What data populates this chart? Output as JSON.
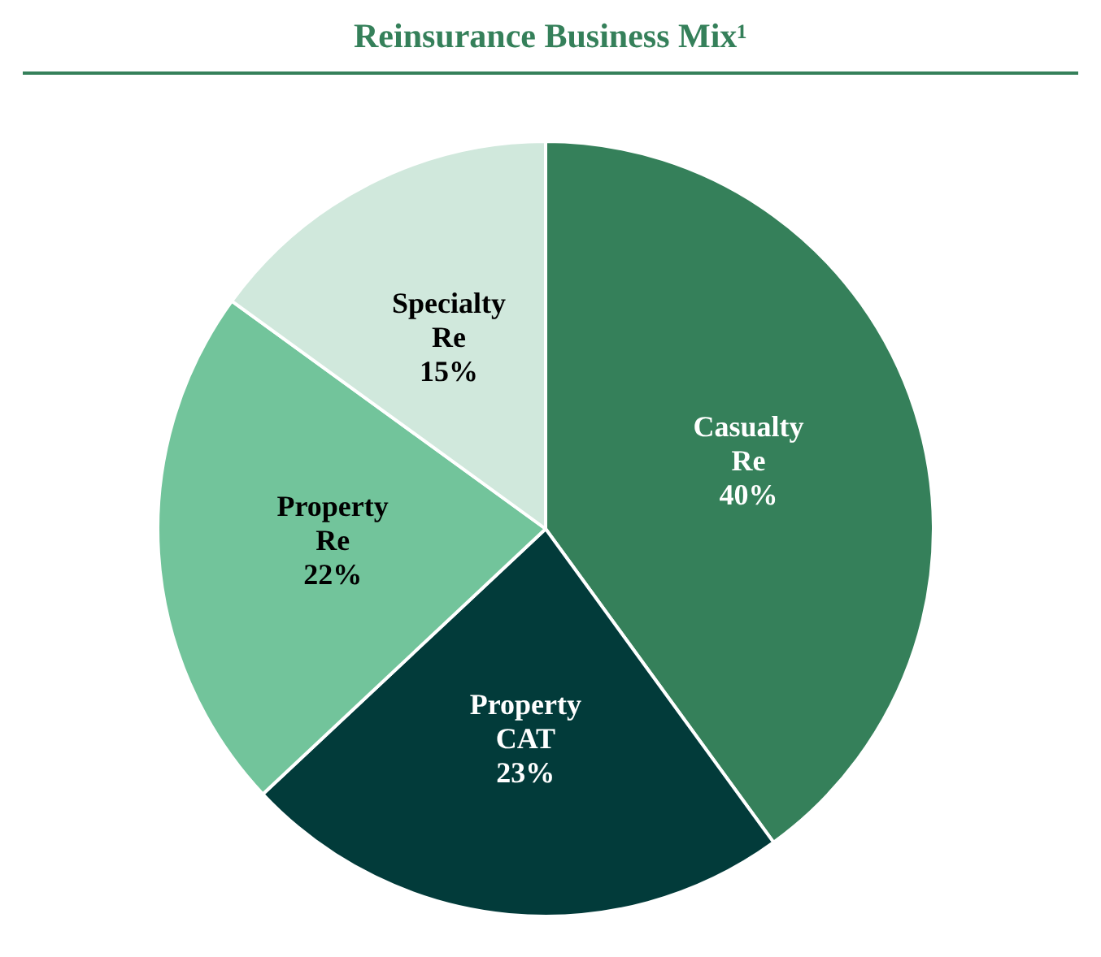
{
  "chart_data": {
    "type": "pie",
    "title": "Reinsurance Business Mix¹",
    "categories": [
      "Casualty Re",
      "Property CAT",
      "Property Re",
      "Specialty Re"
    ],
    "values": [
      40,
      23,
      22,
      15
    ],
    "colors": [
      "#35805a",
      "#023b3a",
      "#72c49b",
      "#d0e8dc"
    ],
    "value_labels": [
      "40%",
      "23%",
      "22%",
      "15%"
    ],
    "legend": false
  }
}
